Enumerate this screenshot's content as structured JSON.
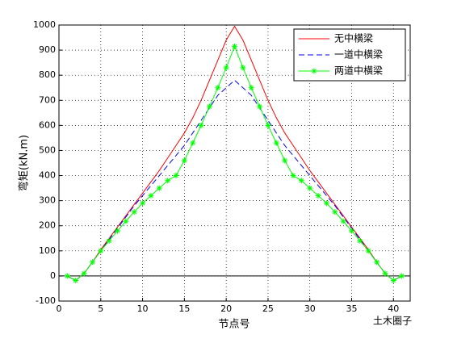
{
  "chart_data": {
    "type": "line",
    "xlabel": "节点号",
    "ylabel": "弯矩(kN.m)",
    "x": [
      1,
      2,
      3,
      4,
      5,
      6,
      7,
      8,
      9,
      10,
      11,
      12,
      13,
      14,
      15,
      16,
      17,
      18,
      19,
      20,
      21,
      22,
      23,
      24,
      25,
      26,
      27,
      28,
      29,
      30,
      31,
      32,
      33,
      34,
      35,
      36,
      37,
      38,
      39,
      40,
      41
    ],
    "series": [
      {
        "name": "无中横梁",
        "color": "#ff0000",
        "style": "solid",
        "marker": "none",
        "values": [
          0,
          -18,
          10,
          55,
          105,
          150,
          195,
          240,
          285,
          330,
          375,
          420,
          470,
          520,
          570,
          630,
          700,
          780,
          860,
          940,
          995,
          940,
          860,
          780,
          700,
          630,
          570,
          520,
          470,
          420,
          375,
          330,
          285,
          240,
          195,
          150,
          105,
          55,
          10,
          -18,
          0
        ]
      },
      {
        "name": "一道中横梁",
        "color": "#0000ff",
        "style": "dashed",
        "marker": "none",
        "values": [
          0,
          -18,
          10,
          55,
          100,
          145,
          190,
          235,
          280,
          320,
          360,
          400,
          440,
          480,
          520,
          570,
          620,
          670,
          720,
          750,
          780,
          750,
          720,
          670,
          620,
          570,
          520,
          480,
          440,
          400,
          360,
          320,
          280,
          235,
          190,
          145,
          100,
          55,
          10,
          -18,
          0
        ]
      },
      {
        "name": "两道中横梁",
        "color": "#00ff00",
        "style": "solid",
        "marker": "asterisk",
        "values": [
          0,
          -18,
          10,
          55,
          100,
          140,
          180,
          218,
          255,
          290,
          320,
          350,
          380,
          400,
          460,
          530,
          600,
          675,
          750,
          830,
          915,
          830,
          750,
          675,
          600,
          530,
          460,
          400,
          380,
          350,
          320,
          290,
          255,
          218,
          180,
          140,
          100,
          55,
          10,
          -18,
          0
        ]
      }
    ],
    "xlim": [
      0,
      42
    ],
    "xticks": [
      0,
      5,
      10,
      15,
      20,
      25,
      30,
      35,
      40
    ],
    "ylim": [
      -100,
      1000
    ],
    "yticks": [
      -100,
      0,
      100,
      200,
      300,
      400,
      500,
      600,
      700,
      800,
      900,
      1000
    ],
    "grid": true,
    "legend": "northeast"
  },
  "watermark": "土木圈子"
}
